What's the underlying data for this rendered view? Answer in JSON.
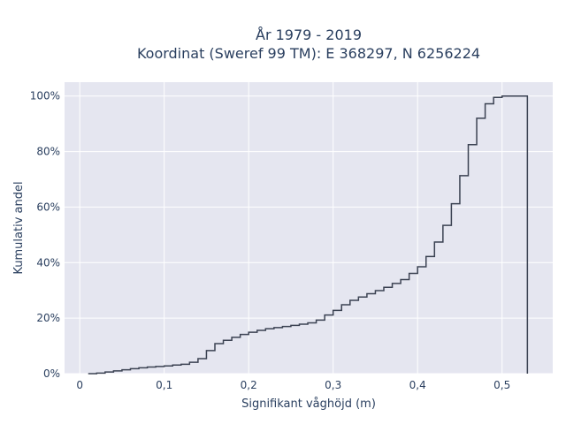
{
  "chart_data": {
    "type": "line",
    "line_shape": "step",
    "title_line1": "År 1979 - 2019",
    "title_line2": "Koordinat (Sweref 99 TM): E 368297, N 6256224",
    "xlabel": "Signifikant våghöjd (m)",
    "ylabel": "Kumulativ andel",
    "xlim": [
      -0.018,
      0.56
    ],
    "ylim": [
      0,
      1.05
    ],
    "x_ticks": [
      0,
      0.1,
      0.2,
      0.3,
      0.4,
      0.5
    ],
    "x_tick_labels": [
      "0",
      "0,1",
      "0,2",
      "0,3",
      "0,4",
      "0,5"
    ],
    "y_ticks": [
      0,
      0.2,
      0.4,
      0.6,
      0.8,
      1.0
    ],
    "y_tick_labels": [
      "0%",
      "20%",
      "40%",
      "60%",
      "80%",
      "100%"
    ],
    "grid": true,
    "colors": {
      "line": "#3b4252",
      "plot_bg": "#e5e6f0",
      "grid": "#ffffff",
      "text": "#2a3f5f"
    },
    "x": [
      0.01,
      0.02,
      0.03,
      0.04,
      0.05,
      0.06,
      0.07,
      0.08,
      0.09,
      0.1,
      0.11,
      0.12,
      0.13,
      0.14,
      0.15,
      0.16,
      0.17,
      0.18,
      0.19,
      0.2,
      0.21,
      0.22,
      0.23,
      0.24,
      0.25,
      0.26,
      0.27,
      0.28,
      0.29,
      0.3,
      0.31,
      0.32,
      0.33,
      0.34,
      0.35,
      0.36,
      0.37,
      0.38,
      0.39,
      0.4,
      0.41,
      0.42,
      0.43,
      0.44,
      0.45,
      0.46,
      0.47,
      0.48,
      0.49,
      0.5,
      0.51,
      0.52,
      0.53
    ],
    "y": [
      0.0,
      0.002,
      0.006,
      0.01,
      0.014,
      0.018,
      0.021,
      0.024,
      0.026,
      0.028,
      0.031,
      0.034,
      0.041,
      0.054,
      0.083,
      0.108,
      0.12,
      0.131,
      0.141,
      0.149,
      0.156,
      0.162,
      0.166,
      0.17,
      0.174,
      0.178,
      0.183,
      0.193,
      0.211,
      0.228,
      0.248,
      0.264,
      0.276,
      0.288,
      0.299,
      0.311,
      0.325,
      0.339,
      0.361,
      0.385,
      0.422,
      0.474,
      0.534,
      0.612,
      0.713,
      0.825,
      0.92,
      0.972,
      0.995,
      1.0,
      1.0,
      1.0,
      0.0
    ]
  }
}
